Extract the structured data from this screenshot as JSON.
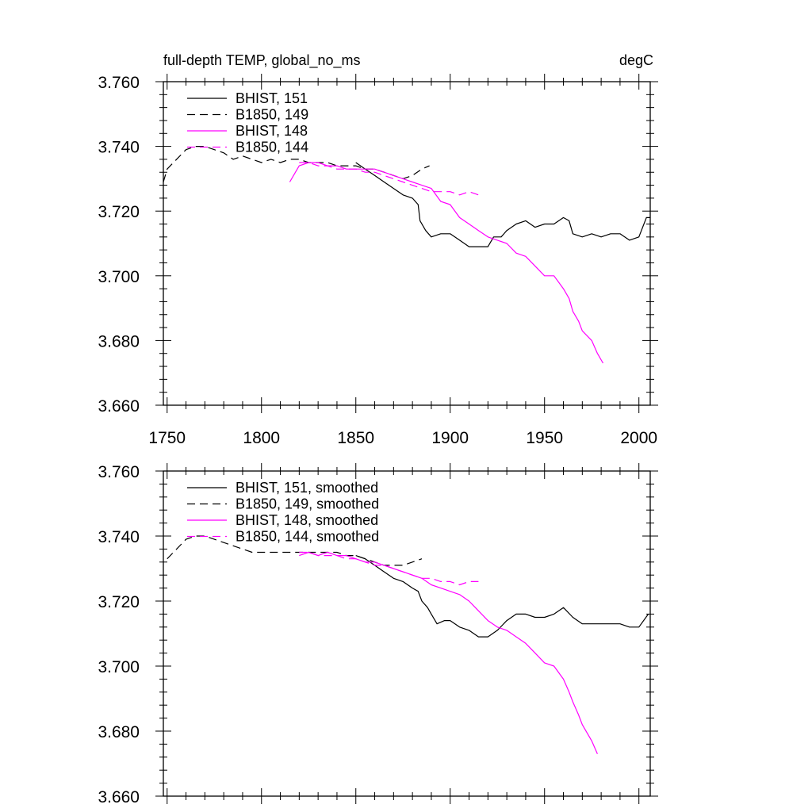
{
  "chart_data": [
    {
      "type": "line",
      "title_left": "full-depth TEMP, global_no_ms",
      "title_right": "degC",
      "xlabel": "",
      "ylabel": "",
      "xlim": [
        1748,
        2006
      ],
      "ylim": [
        3.66,
        3.76
      ],
      "xticks": [
        1750,
        1800,
        1850,
        1900,
        1950,
        2000
      ],
      "xtick_labels": [
        "1750",
        "1800",
        "1850",
        "1900",
        "1950",
        "2000"
      ],
      "yticks": [
        3.66,
        3.68,
        3.7,
        3.72,
        3.74,
        3.76
      ],
      "ytick_labels": [
        "3.660",
        "3.680",
        "3.700",
        "3.720",
        "3.740",
        "3.760"
      ],
      "grid": false,
      "legend_position": "top-left",
      "series": [
        {
          "name": "BHIST, 151",
          "color": "#000000",
          "dash": "solid",
          "x": [
            1850,
            1855,
            1860,
            1865,
            1870,
            1875,
            1880,
            1883,
            1884,
            1887,
            1890,
            1895,
            1900,
            1905,
            1910,
            1915,
            1920,
            1923,
            1927,
            1930,
            1935,
            1940,
            1945,
            1950,
            1955,
            1960,
            1963,
            1965,
            1970,
            1975,
            1980,
            1985,
            1990,
            1995,
            2000,
            2004,
            2006
          ],
          "y": [
            3.735,
            3.733,
            3.731,
            3.729,
            3.727,
            3.725,
            3.724,
            3.722,
            3.717,
            3.714,
            3.712,
            3.713,
            3.713,
            3.711,
            3.709,
            3.709,
            3.709,
            3.712,
            3.712,
            3.714,
            3.716,
            3.717,
            3.715,
            3.716,
            3.716,
            3.718,
            3.717,
            3.713,
            3.712,
            3.713,
            3.712,
            3.713,
            3.713,
            3.711,
            3.712,
            3.718,
            3.718
          ]
        },
        {
          "name": "B1850, 149",
          "color": "#000000",
          "dash": "dashed",
          "x": [
            1748,
            1750,
            1755,
            1760,
            1765,
            1770,
            1775,
            1780,
            1785,
            1790,
            1795,
            1800,
            1805,
            1810,
            1815,
            1820,
            1825,
            1830,
            1835,
            1840,
            1845,
            1850,
            1855,
            1860,
            1865,
            1870,
            1875,
            1880,
            1885,
            1889
          ],
          "y": [
            3.729,
            3.733,
            3.736,
            3.739,
            3.74,
            3.74,
            3.739,
            3.738,
            3.736,
            3.737,
            3.736,
            3.735,
            3.736,
            3.735,
            3.736,
            3.736,
            3.735,
            3.735,
            3.735,
            3.734,
            3.734,
            3.734,
            3.733,
            3.733,
            3.732,
            3.731,
            3.73,
            3.731,
            3.733,
            3.734
          ]
        },
        {
          "name": "BHIST, 148",
          "color": "#ff00ff",
          "dash": "solid",
          "x": [
            1815,
            1820,
            1825,
            1830,
            1835,
            1840,
            1845,
            1850,
            1855,
            1860,
            1865,
            1870,
            1875,
            1880,
            1885,
            1890,
            1895,
            1900,
            1905,
            1910,
            1915,
            1920,
            1925,
            1930,
            1935,
            1940,
            1945,
            1950,
            1955,
            1960,
            1963,
            1965,
            1968,
            1970,
            1975,
            1978,
            1981
          ],
          "y": [
            3.729,
            3.734,
            3.735,
            3.735,
            3.734,
            3.734,
            3.733,
            3.733,
            3.733,
            3.733,
            3.732,
            3.731,
            3.73,
            3.729,
            3.728,
            3.727,
            3.723,
            3.722,
            3.718,
            3.716,
            3.714,
            3.712,
            3.711,
            3.71,
            3.707,
            3.706,
            3.703,
            3.7,
            3.7,
            3.696,
            3.693,
            3.689,
            3.686,
            3.683,
            3.68,
            3.676,
            3.673
          ]
        },
        {
          "name": "B1850, 144",
          "color": "#ff00ff",
          "dash": "dashed",
          "x": [
            1820,
            1825,
            1830,
            1835,
            1840,
            1845,
            1850,
            1855,
            1860,
            1865,
            1870,
            1875,
            1880,
            1885,
            1890,
            1895,
            1900,
            1905,
            1910,
            1915
          ],
          "y": [
            3.735,
            3.735,
            3.734,
            3.734,
            3.733,
            3.733,
            3.733,
            3.732,
            3.732,
            3.731,
            3.73,
            3.729,
            3.728,
            3.727,
            3.726,
            3.726,
            3.726,
            3.725,
            3.726,
            3.725
          ]
        }
      ]
    },
    {
      "type": "line",
      "title_left": "",
      "title_right": "",
      "xlabel": "",
      "ylabel": "",
      "xlim": [
        1748,
        2006
      ],
      "ylim": [
        3.66,
        3.76
      ],
      "xticks": [
        1750,
        1800,
        1850,
        1900,
        1950,
        2000
      ],
      "yticks": [
        3.66,
        3.68,
        3.7,
        3.72,
        3.74,
        3.76
      ],
      "ytick_labels": [
        "3.660",
        "3.680",
        "3.700",
        "3.720",
        "3.740",
        "3.760"
      ],
      "grid": false,
      "legend_position": "top-left",
      "series": [
        {
          "name": "BHIST, 151, smoothed",
          "color": "#000000",
          "dash": "solid",
          "x": [
            1850,
            1855,
            1860,
            1865,
            1870,
            1875,
            1880,
            1883,
            1885,
            1888,
            1890,
            1893,
            1897,
            1900,
            1905,
            1910,
            1915,
            1920,
            1925,
            1930,
            1935,
            1940,
            1945,
            1950,
            1955,
            1960,
            1965,
            1970,
            1975,
            1980,
            1985,
            1990,
            1995,
            2000,
            2005
          ],
          "y": [
            3.734,
            3.733,
            3.731,
            3.729,
            3.727,
            3.726,
            3.724,
            3.723,
            3.72,
            3.718,
            3.716,
            3.713,
            3.714,
            3.714,
            3.712,
            3.711,
            3.709,
            3.709,
            3.711,
            3.714,
            3.716,
            3.716,
            3.715,
            3.715,
            3.716,
            3.718,
            3.715,
            3.713,
            3.713,
            3.713,
            3.713,
            3.713,
            3.712,
            3.712,
            3.716
          ]
        },
        {
          "name": "B1850, 149, smoothed",
          "color": "#000000",
          "dash": "dashed",
          "x": [
            1750,
            1755,
            1760,
            1765,
            1770,
            1775,
            1780,
            1785,
            1790,
            1795,
            1800,
            1805,
            1810,
            1815,
            1820,
            1825,
            1830,
            1835,
            1840,
            1845,
            1850,
            1855,
            1860,
            1865,
            1870,
            1875,
            1880,
            1885
          ],
          "y": [
            3.733,
            3.736,
            3.739,
            3.74,
            3.74,
            3.739,
            3.738,
            3.737,
            3.736,
            3.735,
            3.735,
            3.735,
            3.735,
            3.735,
            3.735,
            3.735,
            3.735,
            3.735,
            3.735,
            3.734,
            3.734,
            3.733,
            3.732,
            3.731,
            3.731,
            3.731,
            3.732,
            3.733
          ]
        },
        {
          "name": "BHIST, 148, smoothed",
          "color": "#ff00ff",
          "dash": "solid",
          "x": [
            1820,
            1825,
            1830,
            1835,
            1840,
            1845,
            1850,
            1855,
            1860,
            1865,
            1870,
            1875,
            1880,
            1885,
            1890,
            1895,
            1900,
            1905,
            1910,
            1915,
            1920,
            1925,
            1930,
            1935,
            1940,
            1945,
            1950,
            1955,
            1960,
            1963,
            1965,
            1968,
            1970,
            1975,
            1978
          ],
          "y": [
            3.734,
            3.735,
            3.734,
            3.735,
            3.734,
            3.734,
            3.733,
            3.732,
            3.732,
            3.731,
            3.73,
            3.729,
            3.728,
            3.727,
            3.725,
            3.724,
            3.723,
            3.722,
            3.72,
            3.717,
            3.714,
            3.712,
            3.711,
            3.709,
            3.707,
            3.704,
            3.701,
            3.7,
            3.696,
            3.692,
            3.689,
            3.685,
            3.682,
            3.677,
            3.673
          ]
        },
        {
          "name": "B1850, 144, smoothed",
          "color": "#ff00ff",
          "dash": "dashed",
          "x": [
            1820,
            1825,
            1830,
            1835,
            1840,
            1845,
            1850,
            1855,
            1860,
            1865,
            1870,
            1875,
            1880,
            1885,
            1890,
            1895,
            1900,
            1905,
            1910,
            1915
          ],
          "y": [
            3.735,
            3.735,
            3.734,
            3.734,
            3.734,
            3.733,
            3.733,
            3.732,
            3.731,
            3.731,
            3.73,
            3.729,
            3.728,
            3.727,
            3.727,
            3.726,
            3.726,
            3.725,
            3.726,
            3.726
          ]
        }
      ]
    }
  ]
}
